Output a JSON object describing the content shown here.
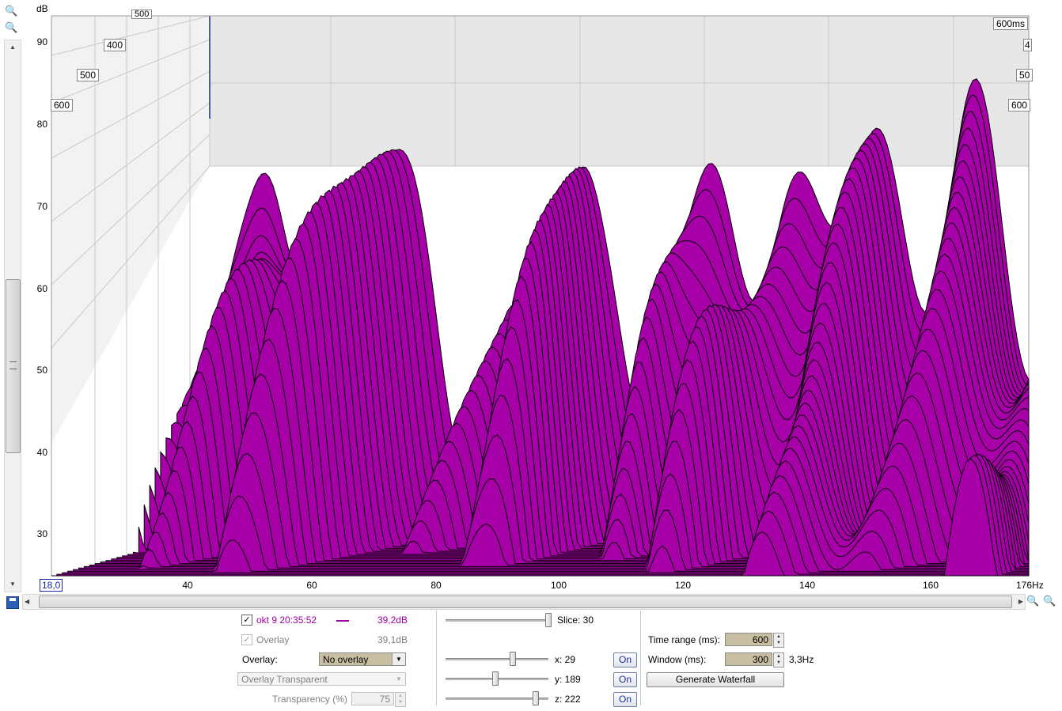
{
  "chart": {
    "y_unit": "dB",
    "y_ticks": [
      "90",
      "80",
      "70",
      "60",
      "50",
      "40",
      "30"
    ],
    "x_ticks": [
      "40",
      "60",
      "80",
      "100",
      "120",
      "140",
      "160"
    ],
    "x_start_label": "18,0",
    "x_end_label": "176Hz",
    "time_labels_left": [
      "500",
      "400",
      "500",
      "600"
    ],
    "time_labels_right": [
      "600ms",
      "4",
      "50",
      "600"
    ]
  },
  "chart_data": {
    "type": "area",
    "xlabel": "Hz",
    "ylabel": "dB",
    "xlim": [
      18,
      176
    ],
    "ylim": [
      25,
      93
    ],
    "z_label": "ms",
    "z_range": [
      0,
      600
    ],
    "slices": 30,
    "fill_color": "#a800a8"
  },
  "legend": {
    "measurement_name": "okt 9 20:35:52",
    "measurement_value": "39,2dB",
    "measurement_color": "#a000a0",
    "overlay_label": "Overlay",
    "overlay_value": "39,1dB"
  },
  "controls": {
    "overlay_select_label": "Overlay:",
    "overlay_select_value": "No overlay",
    "overlay_mode_value": "Overlay Transparent",
    "transparency_label": "Transparency (%)",
    "transparency_value": "75",
    "slice_label": "Slice: 30",
    "x_label": "x: 29",
    "y_label": "y: 189",
    "z_label": "z: 222",
    "on_label": "On",
    "time_range_label": "Time range (ms):",
    "time_range_value": "600",
    "window_label": "Window (ms):",
    "window_value": "300",
    "window_resolution": "3,3Hz",
    "generate_label": "Generate Waterfall"
  }
}
